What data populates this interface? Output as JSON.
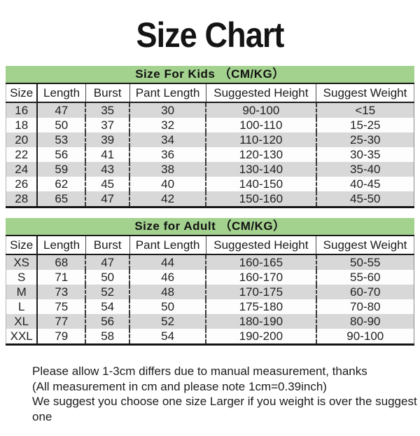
{
  "page": {
    "title": "Size Chart"
  },
  "columns": [
    "Size",
    "Length",
    "Burst",
    "Pant Length",
    "Suggested Height",
    "Suggest Weight"
  ],
  "tables": [
    {
      "banner": "Size For Kids （CM/KG）",
      "headers": [
        "Size",
        "Length",
        "Burst",
        "Pant Length",
        "Suggested Height",
        "Suggest Weight"
      ],
      "rows": [
        [
          "16",
          "47",
          "35",
          "30",
          "90-100",
          "<15"
        ],
        [
          "18",
          "50",
          "37",
          "32",
          "100-110",
          "15-25"
        ],
        [
          "20",
          "53",
          "39",
          "34",
          "110-120",
          "25-30"
        ],
        [
          "22",
          "56",
          "41",
          "36",
          "120-130",
          "30-35"
        ],
        [
          "24",
          "59",
          "43",
          "38",
          "130-140",
          "35-40"
        ],
        [
          "26",
          "62",
          "45",
          "40",
          "140-150",
          "40-45"
        ],
        [
          "28",
          "65",
          "47",
          "42",
          "150-160",
          "45-50"
        ]
      ]
    },
    {
      "banner": "Size for Adult （CM/KG）",
      "headers": [
        "Size",
        "Length",
        "Burst",
        "Pant Length",
        "Suggested Height",
        "Suggest Weight"
      ],
      "rows": [
        [
          "XS",
          "68",
          "47",
          "44",
          "160-165",
          "50-55"
        ],
        [
          "S",
          "71",
          "50",
          "46",
          "160-170",
          "55-60"
        ],
        [
          "M",
          "73",
          "52",
          "48",
          "170-175",
          "60-70"
        ],
        [
          "L",
          "75",
          "54",
          "50",
          "175-180",
          "70-80"
        ],
        [
          "XL",
          "77",
          "56",
          "52",
          "180-190",
          "80-90"
        ],
        [
          "XXL",
          "79",
          "58",
          "54",
          "190-200",
          "90-100"
        ]
      ]
    }
  ],
  "footer": {
    "lines": [
      "Please allow 1-3cm differs due to manual measurement, thanks",
      "(All measurement in cm and please note 1cm=0.39inch)",
      "We suggest you choose one size Larger if you weight is over the suggest one"
    ]
  },
  "colors": {
    "banner_green": "#a3d18e",
    "row_gray": "#d8d8d8",
    "text": "#1b1b1b"
  }
}
